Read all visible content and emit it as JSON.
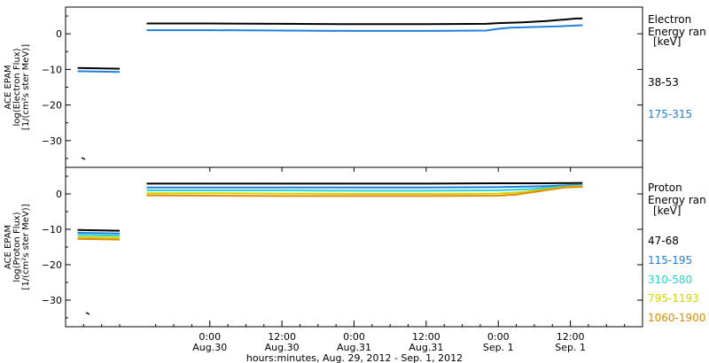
{
  "chart_data": [
    {
      "type": "line",
      "panel": "electron",
      "ylabel_lines": [
        "ACE EPAM",
        "log(Electron Flux)",
        "[1/(cm²s ster MeV)]"
      ],
      "yticks": [
        0,
        -10,
        -20,
        -30
      ],
      "ylim": [
        -37.5,
        7.5
      ],
      "legend_title": [
        "Electron",
        "Energy ran",
        "[keV]"
      ],
      "series": [
        {
          "name": "38-53",
          "color": "#000000",
          "gap_segment": {
            "x": [
              -22,
              -15
            ],
            "y": [
              -9.6,
              -9.8
            ]
          },
          "points": {
            "x": [
              -10.5,
              0,
              12,
              24,
              36,
              46,
              48,
              52,
              56,
              59,
              61,
              62
            ],
            "y": [
              2.9,
              2.9,
              2.8,
              2.7,
              2.7,
              2.8,
              3.0,
              3.2,
              3.6,
              4.0,
              4.3,
              4.3
            ]
          }
        },
        {
          "name": "175-315",
          "color": "#1e7fdc",
          "gap_segment": {
            "x": [
              -22,
              -15
            ],
            "y": [
              -10.5,
              -10.7
            ]
          },
          "points": {
            "x": [
              -10.5,
              0,
              12,
              24,
              36,
              46,
              48,
              50,
              54,
              58,
              62
            ],
            "y": [
              1.0,
              1.0,
              0.9,
              0.8,
              0.8,
              0.9,
              1.4,
              1.7,
              1.9,
              2.1,
              2.4
            ]
          }
        }
      ]
    },
    {
      "type": "line",
      "panel": "proton",
      "ylabel_lines": [
        "ACE EPAM",
        "log(Proton Flux)",
        "[1/(cm²s ster MeV)]"
      ],
      "yticks": [
        0,
        -10,
        -20,
        -30
      ],
      "ylim": [
        -37.5,
        7.5
      ],
      "legend_title": [
        "Proton",
        "Energy ran",
        "[keV]"
      ],
      "series": [
        {
          "name": "47-68",
          "color": "#000000",
          "gap_segment": {
            "x": [
              -22,
              -15
            ],
            "y": [
              -10.2,
              -10.4
            ]
          },
          "points": {
            "x": [
              -10.5,
              0,
              12,
              24,
              36,
              48,
              56,
              62
            ],
            "y": [
              2.9,
              2.9,
              2.9,
              2.9,
              2.9,
              3.0,
              3.0,
              3.1
            ]
          }
        },
        {
          "name": "115-195",
          "color": "#1e7fdc",
          "gap_segment": {
            "x": [
              -22,
              -15
            ],
            "y": [
              -11.0,
              -11.2
            ]
          },
          "points": {
            "x": [
              -10.5,
              0,
              12,
              24,
              36,
              48,
              56,
              62
            ],
            "y": [
              1.8,
              1.8,
              1.8,
              1.8,
              1.8,
              1.9,
              2.2,
              2.6
            ]
          }
        },
        {
          "name": "310-580",
          "color": "#22d3d8",
          "gap_segment": {
            "x": [
              -22,
              -15
            ],
            "y": [
              -11.6,
              -11.8
            ]
          },
          "points": {
            "x": [
              -10.5,
              0,
              12,
              24,
              36,
              48,
              54,
              58,
              62
            ],
            "y": [
              1.0,
              1.0,
              1.0,
              0.9,
              0.9,
              1.0,
              1.4,
              2.0,
              2.4
            ]
          }
        },
        {
          "name": "795-1193",
          "color": "#d4d400",
          "gap_segment": {
            "x": [
              -22,
              -15
            ],
            "y": [
              -12.2,
              -12.4
            ]
          },
          "points": {
            "x": [
              -10.5,
              0,
              12,
              24,
              36,
              48,
              52,
              56,
              60,
              62
            ],
            "y": [
              0.2,
              0.2,
              0.1,
              0.0,
              0.0,
              0.1,
              0.5,
              1.3,
              2.1,
              2.2
            ]
          }
        },
        {
          "name": "1060-1900",
          "color": "#e08a00",
          "gap_segment": {
            "x": [
              -22,
              -15
            ],
            "y": [
              -12.7,
              -12.9
            ]
          },
          "points": {
            "x": [
              -10.5,
              0,
              12,
              24,
              36,
              48,
              51,
              55,
              59,
              62
            ],
            "y": [
              -0.4,
              -0.5,
              -0.6,
              -0.6,
              -0.6,
              -0.5,
              -0.2,
              0.8,
              1.8,
              2.0
            ]
          }
        }
      ]
    }
  ],
  "x_axis": {
    "xlim": [
      -24,
      72
    ],
    "ticks": [
      {
        "x": 0,
        "top": "0:00",
        "bottom": "Aug.30"
      },
      {
        "x": 12,
        "top": "12:00",
        "bottom": "Aug.30"
      },
      {
        "x": 24,
        "top": "0:00",
        "bottom": "Aug.31"
      },
      {
        "x": 36,
        "top": "12:00",
        "bottom": "Aug.31"
      },
      {
        "x": 48,
        "top": "0:00",
        "bottom": "Sep. 1"
      },
      {
        "x": 60,
        "top": "12:00",
        "bottom": "Sep. 1"
      }
    ],
    "xlabel": "hours:minutes, Aug. 29, 2012 - Sep.  1, 2012"
  }
}
